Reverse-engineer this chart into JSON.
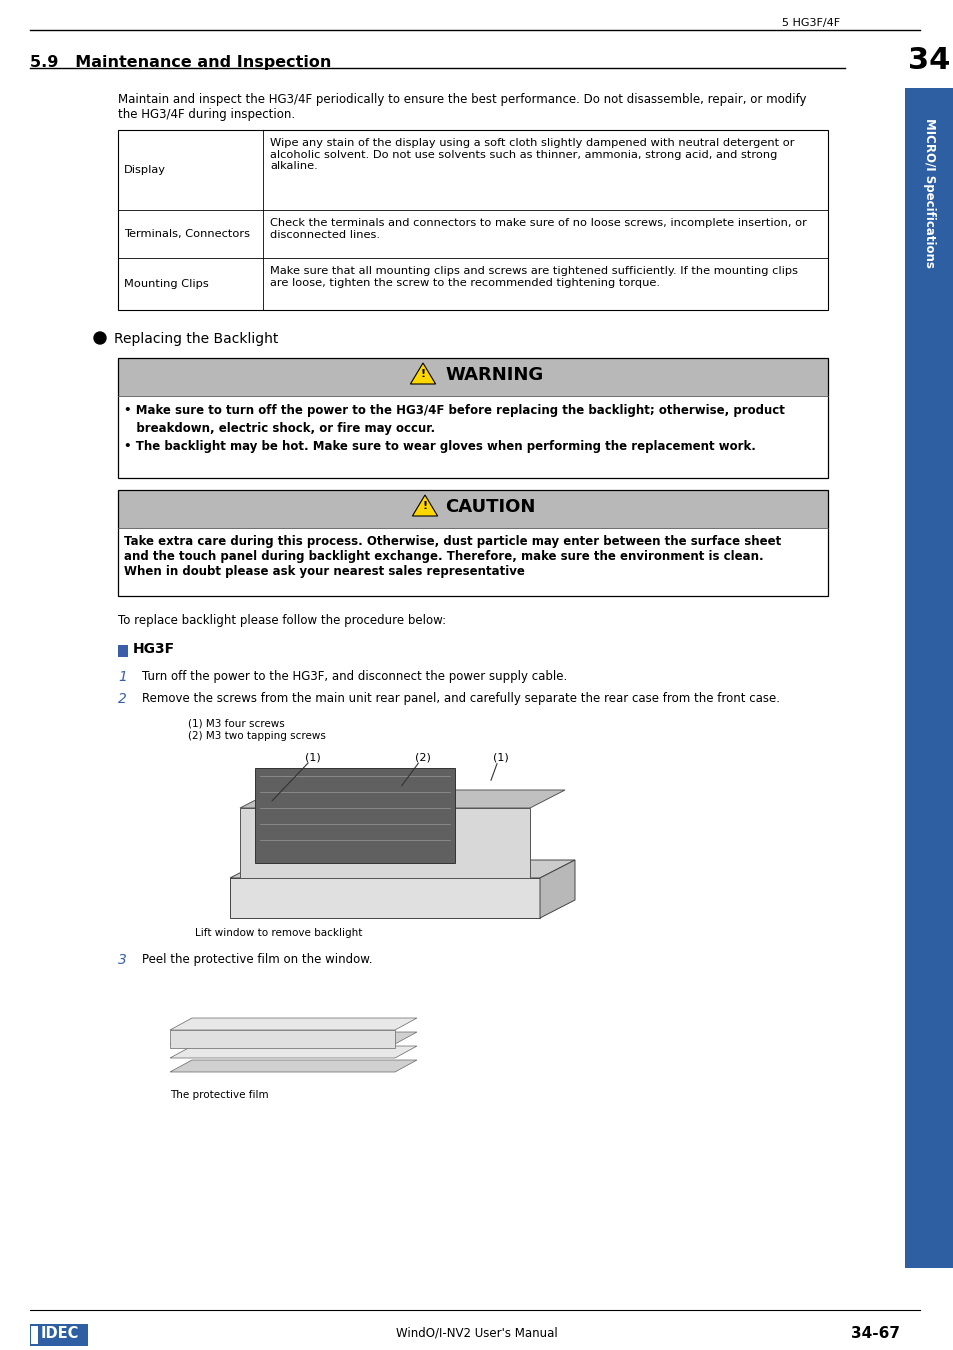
{
  "page_header_right": "5 HG3F/4F",
  "section_title": "5.9   Maintenance and Inspection",
  "intro_text": "Maintain and inspect the HG3/4F periodically to ensure the best performance. Do not disassemble, repair, or modify\nthe HG3/4F during inspection.",
  "table_data": [
    {
      "label": "Display",
      "content": "Wipe any stain of the display using a soft cloth slightly dampened with neutral detergent or\nalcoholic solvent. Do not use solvents such as thinner, ammonia, strong acid, and strong\nalkaline."
    },
    {
      "label": "Terminals, Connectors",
      "content": "Check the terminals and connectors to make sure of no loose screws, incomplete insertion, or\ndisconnected lines."
    },
    {
      "label": "Mounting Clips",
      "content": "Make sure that all mounting clips and screws are tightened sufficiently. If the mounting clips\nare loose, tighten the screw to the recommended tightening torque."
    }
  ],
  "replacing_title": "Replacing the Backlight",
  "warning_text_line1": "• Make sure to turn off the power to the HG3/4F before replacing the backlight; otherwise, product",
  "warning_text_line2": "   breakdown, electric shock, or fire may occur.",
  "warning_text_line3": "• The backlight may be hot. Make sure to wear gloves when performing the replacement work.",
  "caution_text": "Take extra care during this process. Otherwise, dust particle may enter between the surface sheet\nand the touch panel during backlight exchange. Therefore, make sure the environment is clean.\nWhen in doubt please ask your nearest sales representative",
  "replace_intro": "To replace backlight please follow the procedure below:",
  "hg3f_label": "HG3F",
  "step1_num": "1",
  "step1_text": "Turn off the power to the HG3F, and disconnect the power supply cable.",
  "step2_num": "2",
  "step2_text": "Remove the screws from the main unit rear panel, and carefully separate the rear case from the front case.",
  "img1_label1": "(1) M3 four screws",
  "img1_label2": "(2) M3 two tapping screws",
  "img1_callout1": "(1)",
  "img1_callout2": "(2)",
  "img1_callout3": "(1)",
  "img1_sublabel": "Lift window to remove backlight",
  "step3_num": "3",
  "step3_text": "Peel the protective film on the window.",
  "img2_sublabel": "The protective film",
  "sidebar_text": "MICRO/I Specifications",
  "sidebar_num": "34",
  "footer_left": "IDEC",
  "footer_center": "WindO/I-NV2 User's Manual",
  "footer_right": "34-67",
  "bg_color": "#ffffff",
  "text_color": "#000000",
  "gray_header_bg": "#b0b0b0",
  "warn_body_bg": "#ffffff",
  "table_border_color": "#000000",
  "sidebar_bg": "#2e5fa3",
  "sidebar_text_color": "#ffffff",
  "blue_num_color": "#3a5fa8",
  "blue_sq_color": "#3a5fa8"
}
